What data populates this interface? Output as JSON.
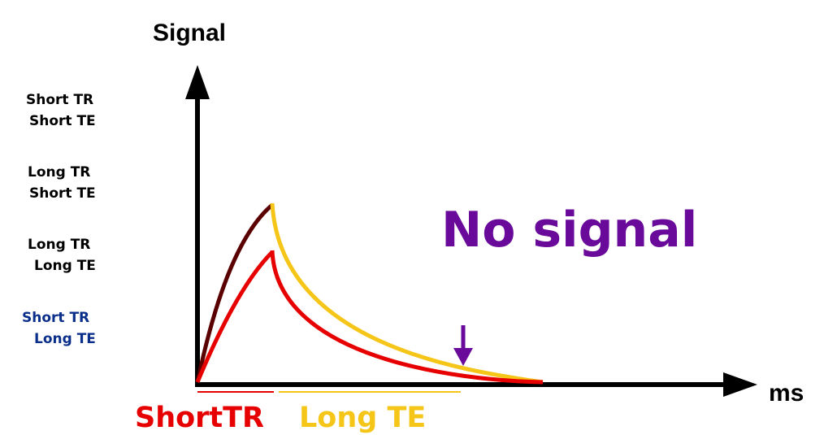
{
  "axes": {
    "y_label": "Signal",
    "x_label": "ms"
  },
  "legend": [
    {
      "line1": "Short TR",
      "line2": "Short TE",
      "color": "#000000"
    },
    {
      "line1": "Long TR",
      "line2": "Short TE",
      "color": "#000000"
    },
    {
      "line1": "Long TR",
      "line2": "Long TE",
      "color": "#000000"
    },
    {
      "line1": "Short TR",
      "line2": "Long TE",
      "color": "#0a2f8a"
    }
  ],
  "annotation": {
    "text": "No signal",
    "color": "#6a0a9a"
  },
  "bottom_labels": {
    "tr": {
      "text": "ShortTR",
      "color": "#e60000"
    },
    "te": {
      "text": "Long TE",
      "color": "#f5c518"
    }
  },
  "colors": {
    "axis": "#000000",
    "long_tr_curve": "#5a0000",
    "short_tr_curve": "#e60000",
    "long_te_decay": "#f5c518",
    "short_tr_decay": "#e60000",
    "arrow": "#6a0a9a"
  }
}
